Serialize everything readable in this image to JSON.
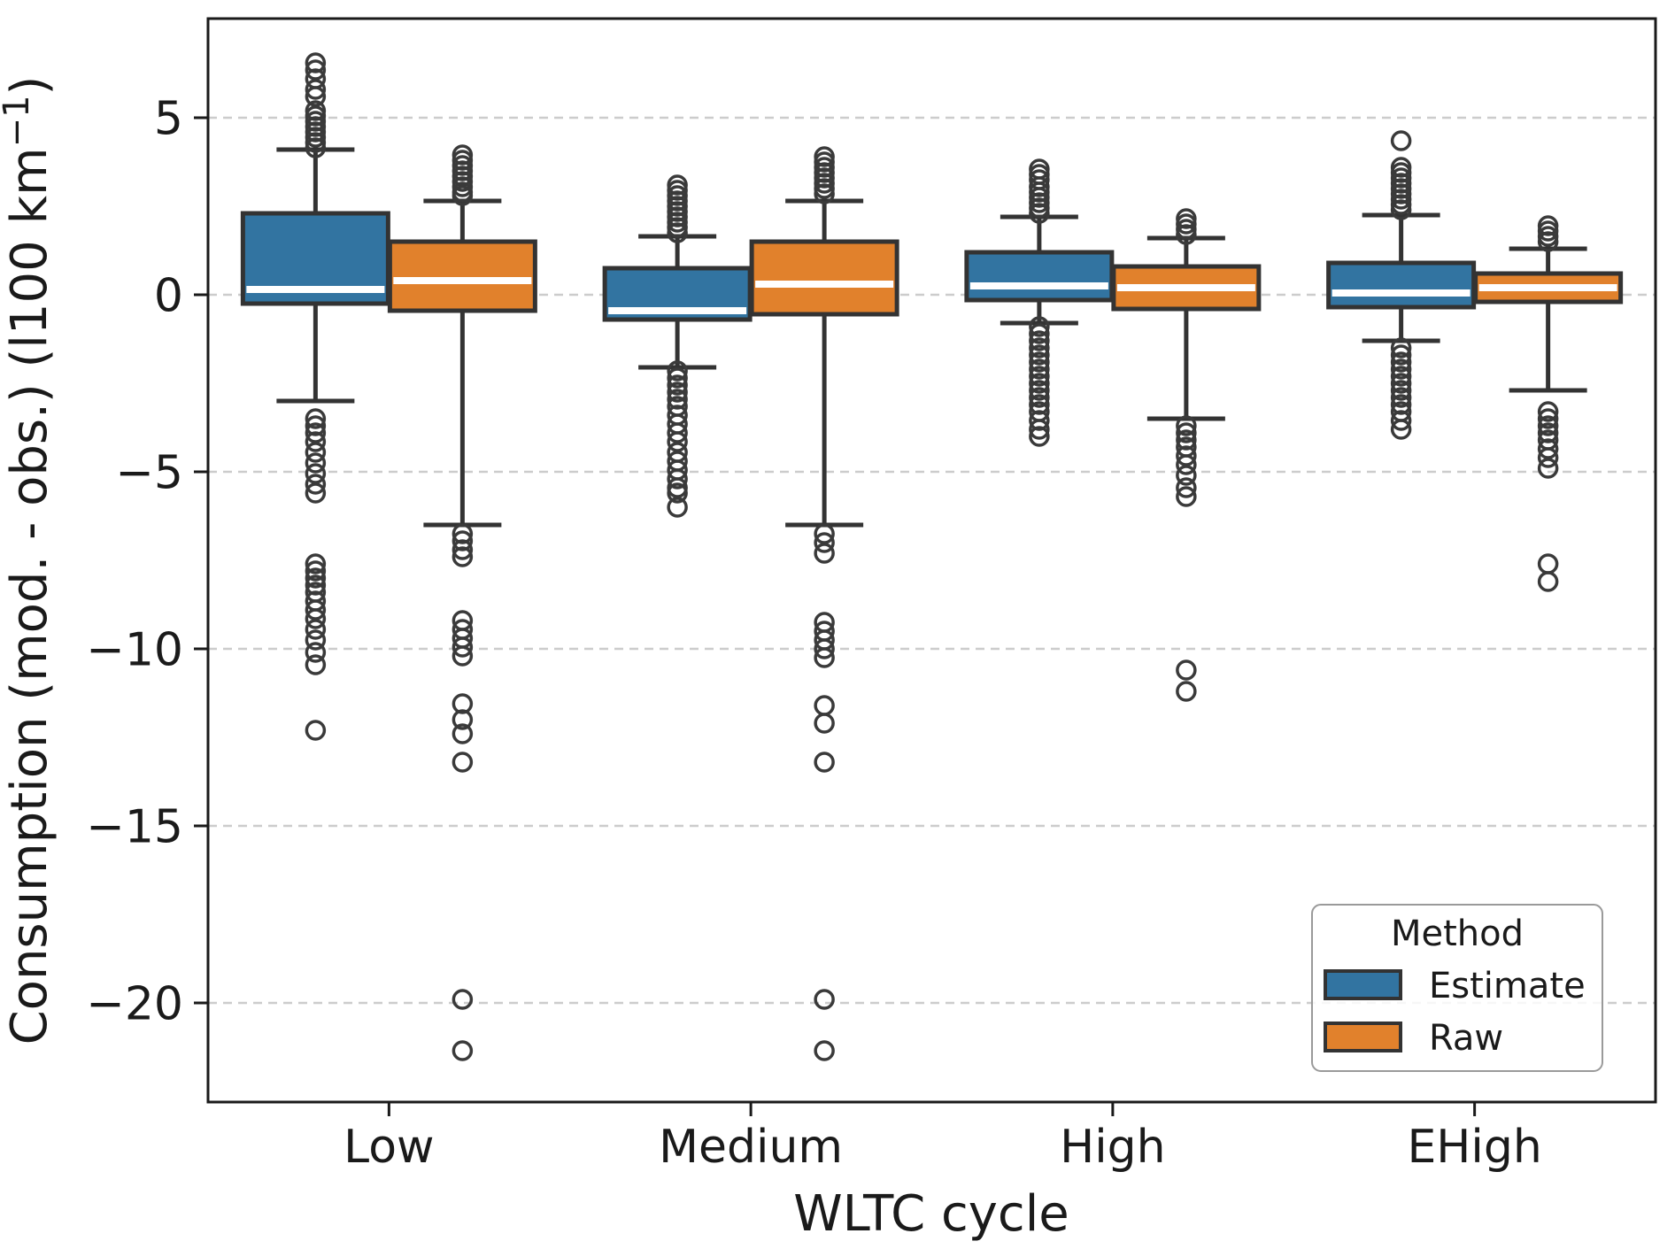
{
  "chart_data": {
    "type": "boxplot",
    "title": "",
    "xlabel": "WLTC cycle",
    "ylabel": {
      "main": "Consumption (mod. - obs.) (l100 km",
      "superscript": "−1",
      "close": ")"
    },
    "categories": [
      "Low",
      "Medium",
      "High",
      "EHigh"
    ],
    "ytick_values": [
      5,
      0,
      -5,
      -10,
      -15,
      -20
    ],
    "ylim": [
      -22.8,
      7.8
    ],
    "grid": {
      "show": true,
      "style": "dashed",
      "color": "#cccccc"
    },
    "colors": {
      "box_edge": "#333333",
      "median_line": "#ffffff",
      "outlier_stroke": "#3a3a3a",
      "spine": "#1a1a1a",
      "text": "#1a1a1a"
    },
    "legend": {
      "title": "Method",
      "position": "lower-right",
      "entries": [
        {
          "label": "Estimate",
          "color": "#3274a1"
        },
        {
          "label": "Raw",
          "color": "#e1812c"
        }
      ]
    },
    "series": [
      {
        "name": "Estimate",
        "color": "#3274a1",
        "boxes": [
          {
            "category": "Low",
            "q1": -0.25,
            "median": 0.15,
            "q3": 2.3,
            "whisker_low": -3.0,
            "whisker_high": 4.1,
            "outliers": [
              6.55,
              6.35,
              6.1,
              5.8,
              5.6,
              5.2,
              5.05,
              4.9,
              4.75,
              4.6,
              4.45,
              4.3,
              4.15,
              -3.5,
              -3.7,
              -3.9,
              -4.15,
              -4.45,
              -4.75,
              -5.05,
              -5.35,
              -5.6,
              -7.6,
              -7.8,
              -8.0,
              -8.2,
              -8.4,
              -8.65,
              -8.9,
              -9.15,
              -9.45,
              -9.75,
              -10.1,
              -10.45,
              -12.3
            ]
          },
          {
            "category": "Medium",
            "q1": -0.7,
            "median": -0.45,
            "q3": 0.75,
            "whisker_low": -2.05,
            "whisker_high": 1.65,
            "outliers": [
              3.1,
              2.95,
              2.8,
              2.65,
              2.5,
              2.35,
              2.2,
              2.05,
              1.9,
              1.75,
              -2.15,
              -2.35,
              -2.55,
              -2.75,
              -2.95,
              -3.15,
              -3.4,
              -3.65,
              -3.9,
              -4.15,
              -4.45,
              -4.7,
              -4.95,
              -5.2,
              -5.45,
              -5.6,
              -6.0
            ]
          },
          {
            "category": "High",
            "q1": -0.15,
            "median": 0.25,
            "q3": 1.2,
            "whisker_low": -0.8,
            "whisker_high": 2.2,
            "outliers": [
              3.55,
              3.4,
              3.25,
              3.05,
              2.9,
              2.75,
              2.6,
              2.45,
              2.3,
              -0.9,
              -1.1,
              -1.3,
              -1.5,
              -1.7,
              -1.9,
              -2.1,
              -2.3,
              -2.5,
              -2.7,
              -2.9,
              -3.1,
              -3.3,
              -3.55,
              -3.8,
              -4.0
            ]
          },
          {
            "category": "EHigh",
            "q1": -0.35,
            "median": 0.05,
            "q3": 0.9,
            "whisker_low": -1.3,
            "whisker_high": 2.25,
            "outliers": [
              4.35,
              3.6,
              3.45,
              3.3,
              3.15,
              3.0,
              2.85,
              2.7,
              2.55,
              2.4,
              -1.5,
              -1.7,
              -1.9,
              -2.1,
              -2.3,
              -2.5,
              -2.7,
              -2.9,
              -3.1,
              -3.3,
              -3.55,
              -3.8
            ]
          }
        ]
      },
      {
        "name": "Raw",
        "color": "#e1812c",
        "boxes": [
          {
            "category": "Low",
            "q1": -0.45,
            "median": 0.4,
            "q3": 1.5,
            "whisker_low": -6.5,
            "whisker_high": 2.65,
            "outliers": [
              3.95,
              3.8,
              3.65,
              3.5,
              3.35,
              3.2,
              3.05,
              2.9,
              2.8,
              -6.75,
              -6.95,
              -7.2,
              -7.4,
              -9.2,
              -9.45,
              -9.7,
              -9.95,
              -10.2,
              -11.55,
              -12.0,
              -12.4,
              -13.2,
              -19.9,
              -21.35
            ]
          },
          {
            "category": "Medium",
            "q1": -0.55,
            "median": 0.3,
            "q3": 1.5,
            "whisker_low": -6.5,
            "whisker_high": 2.65,
            "outliers": [
              3.9,
              3.75,
              3.6,
              3.45,
              3.3,
              3.15,
              3.0,
              2.85,
              -6.75,
              -7.0,
              -7.3,
              -9.25,
              -9.5,
              -9.75,
              -10.0,
              -10.25,
              -11.6,
              -12.1,
              -13.2,
              -19.9,
              -21.35
            ]
          },
          {
            "category": "High",
            "q1": -0.4,
            "median": 0.2,
            "q3": 0.8,
            "whisker_low": -3.5,
            "whisker_high": 1.6,
            "outliers": [
              2.15,
              2.0,
              1.85,
              1.7,
              -3.7,
              -3.9,
              -4.1,
              -4.3,
              -4.55,
              -4.8,
              -5.1,
              -5.45,
              -5.7,
              -10.6,
              -11.2
            ]
          },
          {
            "category": "EHigh",
            "q1": -0.2,
            "median": 0.2,
            "q3": 0.6,
            "whisker_low": -2.7,
            "whisker_high": 1.3,
            "outliers": [
              1.95,
              1.8,
              1.65,
              1.5,
              -3.3,
              -3.5,
              -3.7,
              -3.9,
              -4.1,
              -4.35,
              -4.6,
              -4.9,
              -7.6,
              -8.1
            ]
          }
        ]
      }
    ]
  }
}
